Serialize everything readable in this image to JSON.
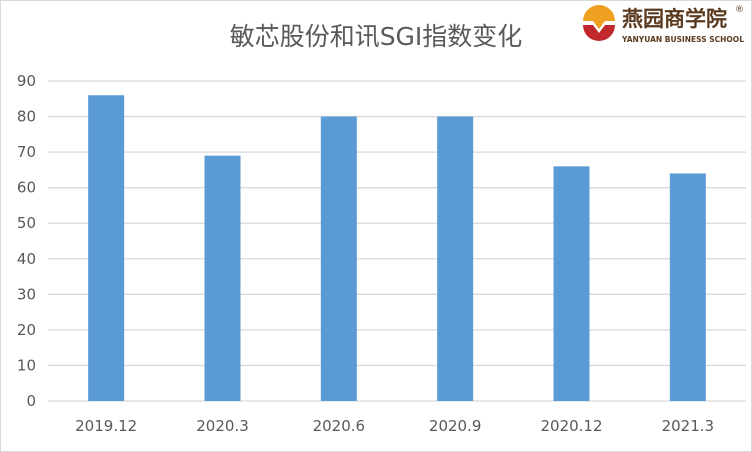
{
  "chart_data": {
    "type": "bar",
    "title": "敏芯股份和讯SGI指数变化",
    "categories": [
      "2019.12",
      "2020.3",
      "2020.6",
      "2020.9",
      "2020.12",
      "2021.3"
    ],
    "values": [
      86,
      69,
      80,
      80,
      66,
      64
    ],
    "xlabel": "",
    "ylabel": "",
    "ylim": [
      0,
      90
    ],
    "yticks": [
      0,
      10,
      20,
      30,
      40,
      50,
      60,
      70,
      80,
      90
    ],
    "grid": true,
    "bar_color": "#5b9bd5"
  },
  "watermark": {
    "name_cn": "燕园商学院",
    "name_en": "YANYUAN BUSINESS SCHOOL",
    "reg": "®"
  }
}
